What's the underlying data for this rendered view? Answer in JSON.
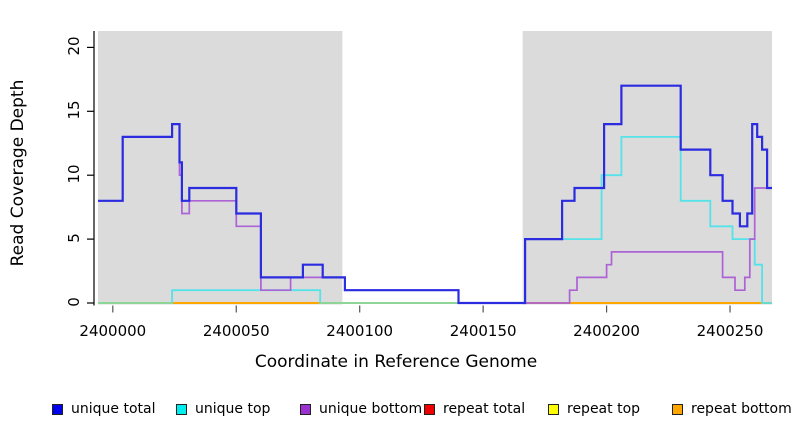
{
  "chart_data": {
    "type": "line",
    "subtype": "step-coverage",
    "title": "",
    "xlabel": "Coordinate in Reference Genome",
    "ylabel": "Read Coverage Depth",
    "x_range": [
      2399994,
      2400267
    ],
    "y_range": [
      0,
      21.3
    ],
    "x_ticks": [
      2400000,
      2400050,
      2400100,
      2400150,
      2400200,
      2400250
    ],
    "y_ticks": [
      0,
      5,
      10,
      15,
      20
    ],
    "grid": false,
    "legend_position": "bottom",
    "shaded_regions": [
      {
        "x0": 2399994,
        "x1": 2400093,
        "color": "#DBDBDB"
      },
      {
        "x0": 2400166,
        "x1": 2400267,
        "color": "#DBDBDB"
      }
    ],
    "series": [
      {
        "name": "unique total",
        "legend_color": "#0000EE",
        "line_color": "#2B2BDF",
        "line_width": 2.2,
        "steps": [
          [
            2399994,
            8
          ],
          [
            2400004,
            13
          ],
          [
            2400024,
            14
          ],
          [
            2400027,
            11
          ],
          [
            2400028,
            8
          ],
          [
            2400031,
            9
          ],
          [
            2400050,
            7
          ],
          [
            2400060,
            2
          ],
          [
            2400077,
            3
          ],
          [
            2400085,
            2
          ],
          [
            2400094,
            1
          ],
          [
            2400140,
            0
          ],
          [
            2400167,
            5
          ],
          [
            2400182,
            8
          ],
          [
            2400187,
            9
          ],
          [
            2400199,
            14
          ],
          [
            2400206,
            17
          ],
          [
            2400230,
            12
          ],
          [
            2400242,
            10
          ],
          [
            2400247,
            8
          ],
          [
            2400251,
            7
          ],
          [
            2400254,
            6
          ],
          [
            2400257,
            7
          ],
          [
            2400259,
            14
          ],
          [
            2400261,
            13
          ],
          [
            2400263,
            12
          ],
          [
            2400265,
            9
          ]
        ]
      },
      {
        "name": "unique top",
        "legend_color": "#00EEEE",
        "line_color": "#55E2E8",
        "line_width": 1.8,
        "steps": [
          [
            2399994,
            0
          ],
          [
            2400024,
            1
          ],
          [
            2400084,
            0
          ],
          [
            2400167,
            5
          ],
          [
            2400198,
            10
          ],
          [
            2400206,
            13
          ],
          [
            2400230,
            8
          ],
          [
            2400242,
            6
          ],
          [
            2400251,
            5
          ],
          [
            2400260,
            3
          ],
          [
            2400263,
            0
          ]
        ]
      },
      {
        "name": "unique bottom",
        "legend_color": "#9A30D0",
        "line_color": "#AB63D6",
        "line_width": 1.7,
        "steps": [
          [
            2399994,
            8
          ],
          [
            2400004,
            13
          ],
          [
            2400024,
            14
          ],
          [
            2400027,
            10
          ],
          [
            2400028,
            7
          ],
          [
            2400031,
            8
          ],
          [
            2400050,
            6
          ],
          [
            2400060,
            1
          ],
          [
            2400072,
            2
          ],
          [
            2400094,
            1
          ],
          [
            2400140,
            0
          ],
          [
            2400185,
            1
          ],
          [
            2400188,
            2
          ],
          [
            2400200,
            3
          ],
          [
            2400202,
            4
          ],
          [
            2400247,
            2
          ],
          [
            2400252,
            1
          ],
          [
            2400256,
            2
          ],
          [
            2400258,
            5
          ],
          [
            2400260,
            9
          ]
        ]
      },
      {
        "name": "repeat total",
        "legend_color": "#EE0000",
        "line_color": "#EE0000",
        "line_width": 1.6,
        "steps": [
          [
            2399994,
            0
          ]
        ]
      },
      {
        "name": "repeat top",
        "legend_color": "#FFFF00",
        "line_color": "#FFFF00",
        "line_width": 1.6,
        "steps": [
          [
            2399994,
            0
          ]
        ]
      },
      {
        "name": "repeat bottom",
        "legend_color": "#FFA500",
        "line_color": "#FFA500",
        "line_width": 2,
        "steps": [
          [
            2399994,
            0
          ]
        ]
      }
    ],
    "baseline_blend_segments": [
      {
        "x0": 2399994,
        "x1": 2400024,
        "color": "#90D795"
      },
      {
        "x0": 2400084,
        "x1": 2400167,
        "color": "#90D795"
      }
    ]
  },
  "legend": {
    "items": [
      {
        "label": "unique total",
        "color": "#0000EE"
      },
      {
        "label": "unique top",
        "color": "#00EEEE"
      },
      {
        "label": "unique bottom",
        "color": "#9A30D0"
      },
      {
        "label": "repeat total",
        "color": "#EE0000"
      },
      {
        "label": "repeat top",
        "color": "#FFFF00"
      },
      {
        "label": "repeat bottom",
        "color": "#FFA500"
      }
    ]
  }
}
